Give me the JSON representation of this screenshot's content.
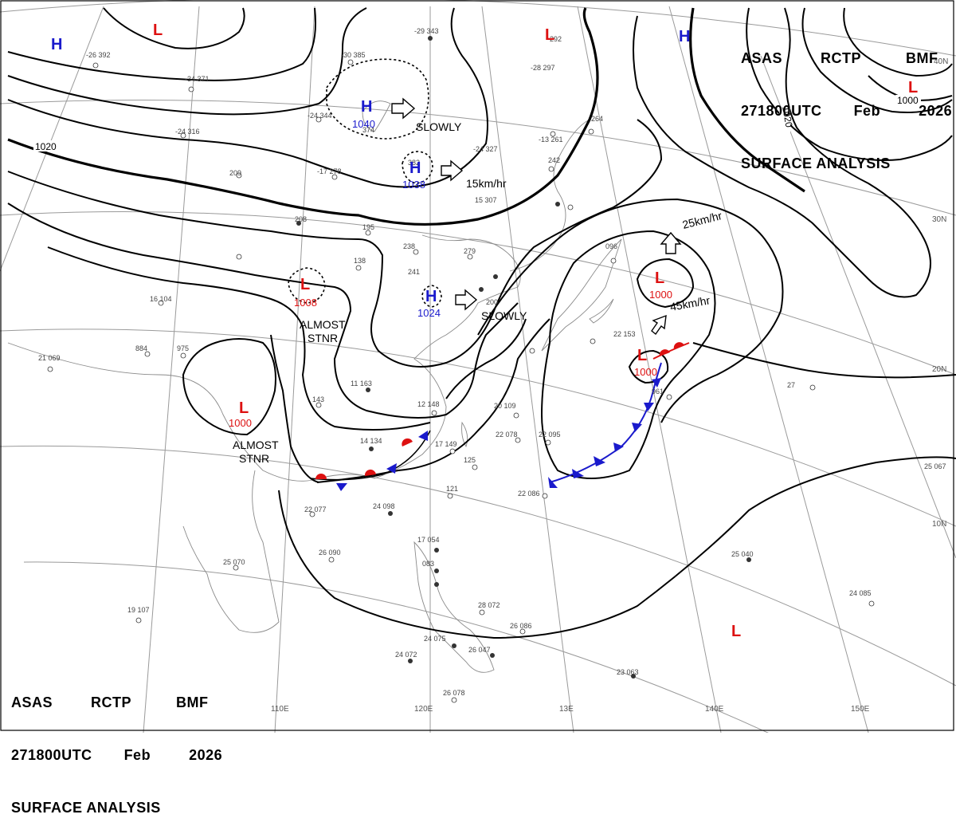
{
  "header": {
    "agency_line": [
      "ASAS",
      "RCTP",
      "BMF"
    ],
    "time_line": [
      "271800UTC",
      "Feb",
      "2026"
    ],
    "title_line": "SURFACE ANALYSIS"
  },
  "colors": {
    "high": "#1a1acc",
    "low": "#dd1111",
    "isobar": "#000000",
    "grid": "#9a9a9a"
  },
  "pressure_systems": [
    {
      "kind": "H",
      "pressure": ""
    },
    {
      "kind": "L",
      "pressure": ""
    },
    {
      "kind": "H",
      "pressure": "1040",
      "motion": "SLOWLY"
    },
    {
      "kind": "H",
      "pressure": "1038",
      "motion": "15km/hr"
    },
    {
      "kind": "L",
      "pressure": ""
    },
    {
      "kind": "H",
      "pressure": ""
    },
    {
      "kind": "L",
      "pressure": "1000"
    },
    {
      "kind": "L",
      "pressure": "1008",
      "motion": "ALMOST STNR"
    },
    {
      "kind": "H",
      "pressure": "1024",
      "motion": "SLOWLY"
    },
    {
      "kind": "L",
      "pressure": "1000",
      "motion": "45km/hr"
    },
    {
      "kind": "L",
      "pressure": "1000",
      "motion": "25km/hr"
    },
    {
      "kind": "L",
      "pressure": "1000",
      "motion": "ALMOST STNR"
    },
    {
      "kind": "L",
      "pressure": ""
    }
  ],
  "motion_labels": {
    "slowly_1": "SLOWLY",
    "speed_15": "15km/hr",
    "speed_25": "25km/hr",
    "speed_45": "45km/hr",
    "slowly_2": "SLOWLY",
    "stnr_1_a": "ALMOST",
    "stnr_1_b": "STNR",
    "stnr_2_a": "ALMOST",
    "stnr_2_b": "STNR"
  },
  "isobar_labels": [
    "1020",
    "1020",
    "1000"
  ],
  "axis_labels": {
    "longitudes": [
      "110E",
      "120E",
      "13Е",
      "140E",
      "150E"
    ],
    "latitudes": [
      "40N",
      "30N",
      "20N",
      "10N"
    ]
  },
  "station_plots": [
    {
      "t": "-26",
      "p": "392"
    },
    {
      "t": "-34",
      "p": "371"
    },
    {
      "t": "-30",
      "p": "385"
    },
    {
      "t": "-29",
      "p": "343"
    },
    {
      "t": "-24",
      "p": "344"
    },
    {
      "t": "-24",
      "p": "316"
    },
    {
      "t": "-17",
      "p": "278"
    },
    {
      "t": "",
      "p": "209"
    },
    {
      "t": "",
      "p": "374"
    },
    {
      "t": "",
      "p": "382"
    },
    {
      "t": "-24",
      "p": "327"
    },
    {
      "t": "-28",
      "p": "297"
    },
    {
      "t": "",
      "p": "292"
    },
    {
      "t": "-13",
      "p": "261"
    },
    {
      "t": "",
      "p": "264"
    },
    {
      "t": "",
      "p": "242"
    },
    {
      "t": "15",
      "p": "307"
    },
    {
      "t": "",
      "p": "208"
    },
    {
      "t": "",
      "p": "195"
    },
    {
      "t": "",
      "p": "238"
    },
    {
      "t": "",
      "p": "279"
    },
    {
      "t": "",
      "p": "138"
    },
    {
      "t": "",
      "p": "241"
    },
    {
      "t": "",
      "p": "200"
    },
    {
      "t": "16",
      "p": "104"
    },
    {
      "t": "",
      "p": "884"
    },
    {
      "t": "",
      "p": "975"
    },
    {
      "t": "21",
      "p": "069"
    },
    {
      "t": "",
      "p": "143"
    },
    {
      "t": "11",
      "p": "163"
    },
    {
      "t": "12",
      "p": "148"
    },
    {
      "t": "14",
      "p": "134"
    },
    {
      "t": "17",
      "p": "149"
    },
    {
      "t": "",
      "p": "125"
    },
    {
      "t": "",
      "p": "121"
    },
    {
      "t": "24",
      "p": "098"
    },
    {
      "t": "22",
      "p": "077"
    },
    {
      "t": "26",
      "p": "090"
    },
    {
      "t": "25",
      "p": "070"
    },
    {
      "t": "19",
      "p": "107"
    },
    {
      "t": "20",
      "p": "109"
    },
    {
      "t": "22",
      "p": "078"
    },
    {
      "t": "22",
      "p": "095"
    },
    {
      "t": "22",
      "p": "086"
    },
    {
      "t": "",
      "p": "961"
    },
    {
      "t": "",
      "p": "096"
    },
    {
      "t": "22",
      "p": "153"
    },
    {
      "t": "27",
      "p": ""
    },
    {
      "t": "25",
      "p": "067"
    },
    {
      "t": "25",
      "p": "040"
    },
    {
      "t": "24",
      "p": "085"
    },
    {
      "t": "17",
      "p": "054"
    },
    {
      "t": "",
      "p": "083"
    },
    {
      "t": "28",
      "p": "072"
    },
    {
      "t": "26",
      "p": "086"
    },
    {
      "t": "24",
      "p": "072"
    },
    {
      "t": "24",
      "p": "075"
    },
    {
      "t": "26",
      "p": "047"
    },
    {
      "t": "23",
      "p": "063"
    },
    {
      "t": "26",
      "p": "078"
    }
  ]
}
